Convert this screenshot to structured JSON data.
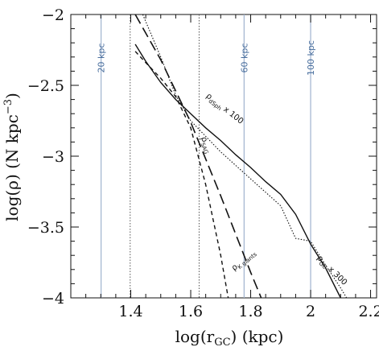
{
  "chart_data": {
    "type": "line",
    "title": "",
    "xlabel": "log(r",
    "xlabel_sub": "GC",
    "xlabel_unit": ") (kpc)",
    "ylabel": "log(ρ) (N kpc",
    "ylabel_sup": "−3",
    "ylabel_end": ")",
    "xlim": [
      1.2,
      2.22
    ],
    "ylim": [
      -4,
      -2
    ],
    "xticks": [
      1.4,
      1.6,
      1.8,
      2,
      2.2
    ],
    "xtick_labels": [
      "1.4",
      "1.6",
      "1.8",
      "2",
      "2.2"
    ],
    "yticks": [
      -2,
      -2.5,
      -3,
      -3.5,
      -4
    ],
    "ytick_labels": [
      "−2",
      "−2.5",
      "−3",
      "−3.5",
      "−4"
    ],
    "grid": false,
    "reference_lines": [
      {
        "x": 1.301,
        "label": "20 kpc",
        "color": "#9fb3cf"
      },
      {
        "x": 1.778,
        "label": "60 kpc",
        "color": "#9fb3cf"
      },
      {
        "x": 2.0,
        "label": "100 kpc",
        "color": "#9fb3cf"
      }
    ],
    "dotted_vlines": [
      1.398,
      1.628
    ],
    "series": [
      {
        "label_main": "ρ",
        "label_sub": "dSph",
        "label_tail": " x 100",
        "style": "solid",
        "points": [
          [
            1.415,
            -2.21
          ],
          [
            1.45,
            -2.33
          ],
          [
            1.5,
            -2.48
          ],
          [
            1.55,
            -2.6
          ],
          [
            1.6,
            -2.7
          ],
          [
            1.65,
            -2.8
          ],
          [
            1.7,
            -2.89
          ],
          [
            1.75,
            -2.99
          ],
          [
            1.8,
            -3.08
          ],
          [
            1.85,
            -3.18
          ],
          [
            1.9,
            -3.27
          ],
          [
            1.95,
            -3.41
          ],
          [
            2.0,
            -3.62
          ],
          [
            2.05,
            -3.79
          ],
          [
            2.1,
            -4.0
          ]
        ]
      },
      {
        "label_main": "ρ",
        "label_sub": "SAG",
        "label_tail": "",
        "style": "short-dash",
        "points": [
          [
            1.415,
            -2.26
          ],
          [
            1.45,
            -2.34
          ],
          [
            1.5,
            -2.45
          ],
          [
            1.55,
            -2.58
          ],
          [
            1.6,
            -2.8
          ],
          [
            1.65,
            -3.2
          ],
          [
            1.7,
            -3.7
          ],
          [
            1.725,
            -4.0
          ]
        ]
      },
      {
        "label_main": "ρ",
        "label_sub": "K giants",
        "label_tail": "",
        "style": "long-dash",
        "points": [
          [
            1.415,
            -2.0
          ],
          [
            1.5,
            -2.32
          ],
          [
            1.6,
            -2.76
          ],
          [
            1.7,
            -3.28
          ],
          [
            1.8,
            -3.82
          ],
          [
            1.835,
            -4.0
          ]
        ]
      },
      {
        "label_main": "ρ",
        "label_sub": "GC",
        "label_tail": " x 300",
        "style": "dotted",
        "points": [
          [
            1.44,
            -2.0
          ],
          [
            1.5,
            -2.3
          ],
          [
            1.55,
            -2.57
          ],
          [
            1.6,
            -2.75
          ],
          [
            1.7,
            -2.97
          ],
          [
            1.8,
            -3.16
          ],
          [
            1.9,
            -3.35
          ],
          [
            1.95,
            -3.58
          ],
          [
            2.0,
            -3.6
          ],
          [
            2.05,
            -3.77
          ],
          [
            2.1,
            -3.93
          ],
          [
            2.12,
            -4.0
          ]
        ]
      }
    ],
    "annotations": [
      {
        "series": 0,
        "x": 1.65,
        "y": -2.58,
        "angle": 38
      },
      {
        "series": 1,
        "x": 1.635,
        "y": -2.87,
        "angle": 70
      },
      {
        "series": 2,
        "x": 1.745,
        "y": -3.81,
        "angle": -40
      },
      {
        "series": 3,
        "x": 2.02,
        "y": -3.72,
        "angle": 45
      }
    ]
  }
}
